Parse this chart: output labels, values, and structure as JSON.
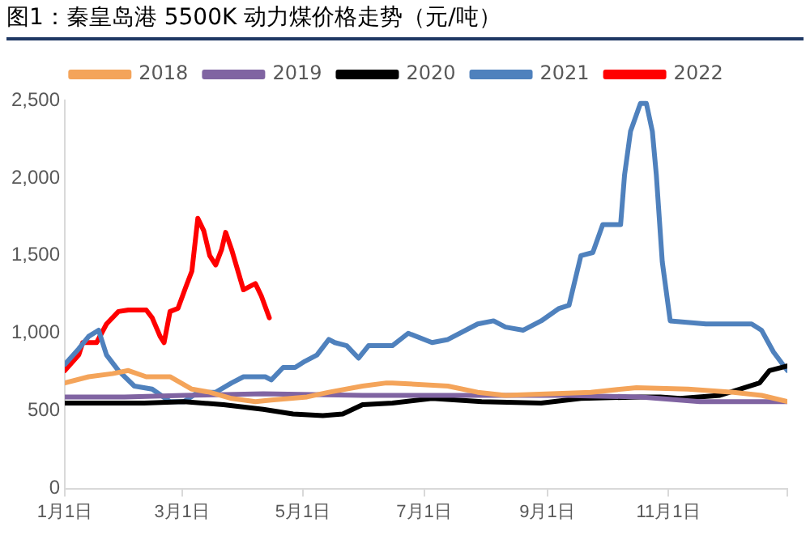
{
  "chart_data": {
    "type": "line",
    "title": "图1：秦皇岛港 5500K 动力煤价格走势（元/吨）",
    "xlim": [
      "--01-01",
      "--12-31"
    ],
    "xticks": [
      {
        "value": "--01-01",
        "label": "1月1日"
      },
      {
        "value": "--03-01",
        "label": "3月1日"
      },
      {
        "value": "--05-01",
        "label": "5月1日"
      },
      {
        "value": "--07-01",
        "label": "7月1日"
      },
      {
        "value": "--09-01",
        "label": "9月1日"
      },
      {
        "value": "--11-01",
        "label": "11月1日"
      },
      {
        "value": "--12-31",
        "label": null
      }
    ],
    "ylim": [
      0,
      2500
    ],
    "yticks": [
      0,
      {
        "value": 500,
        "label": "500"
      },
      {
        "value": 1000,
        "label": "1,000"
      },
      {
        "value": 1500,
        "label": "1,500"
      },
      {
        "value": 2000,
        "label": "2,000"
      },
      {
        "value": 2500,
        "label": "2,500"
      }
    ],
    "grid": false,
    "legend": "top",
    "marker": "none",
    "line_style": "solid",
    "series": [
      {
        "name": "2018",
        "color": "#f4a45a",
        "x": [
          "--01-01",
          "--01-13",
          "--01-25",
          "--02-02",
          "--02-11",
          "--02-23",
          "--03-06",
          "--03-15",
          "--03-26",
          "--04-07",
          "--04-15",
          "--05-03",
          "--05-14",
          "--05-31",
          "--06-12",
          "--06-15",
          "--07-13",
          "--07-28",
          "--08-11",
          "--09-03",
          "--09-23",
          "--10-16",
          "--11-11",
          "--12-04",
          "--12-18",
          "--12-31"
        ],
        "values": [
          680,
          720,
          740,
          760,
          720,
          720,
          640,
          620,
          580,
          560,
          570,
          590,
          620,
          660,
          680,
          680,
          660,
          620,
          600,
          610,
          620,
          650,
          640,
          620,
          600,
          560
        ]
      },
      {
        "name": "2019",
        "color": "#8064a2",
        "x": [
          "--01-01",
          "--01-31",
          "--03-02",
          "--04-11",
          "--05-31",
          "--07-20",
          "--09-08",
          "--10-18",
          "--11-17",
          "--12-31"
        ],
        "values": [
          590,
          590,
          600,
          610,
          600,
          600,
          600,
          590,
          560,
          560
        ]
      },
      {
        "name": "2020",
        "color": "#000000",
        "x": [
          "--01-01",
          "--02-10",
          "--03-02",
          "--03-22",
          "--04-11",
          "--04-26",
          "--05-11",
          "--05-21",
          "--05-31",
          "--06-15",
          "--07-05",
          "--07-30",
          "--08-29",
          "--09-18",
          "--10-18",
          "--10-28",
          "--11-07",
          "--11-27",
          "--12-07",
          "--12-17",
          "--12-22",
          "--12-31"
        ],
        "values": [
          550,
          550,
          560,
          540,
          510,
          480,
          470,
          480,
          540,
          550,
          580,
          560,
          550,
          580,
          590,
          590,
          580,
          600,
          640,
          680,
          760,
          790
        ]
      },
      {
        "name": "2021",
        "color": "#4f81bd",
        "x": [
          "--01-01",
          "--01-08",
          "--01-13",
          "--01-18",
          "--01-22",
          "--01-28",
          "--02-05",
          "--02-14",
          "--02-23",
          "--03-02",
          "--03-09",
          "--03-18",
          "--03-26",
          "--04-01",
          "--04-12",
          "--04-15",
          "--04-21",
          "--04-27",
          "--05-02",
          "--05-08",
          "--05-14",
          "--05-17",
          "--05-23",
          "--05-29",
          "--06-03",
          "--06-15",
          "--06-23",
          "--07-05",
          "--07-13",
          "--07-28",
          "--08-05",
          "--08-11",
          "--08-20",
          "--08-29",
          "--09-07",
          "--09-12",
          "--09-18",
          "--09-24",
          "--09-29",
          "--10-08",
          "--10-10",
          "--10-13",
          "--10-18",
          "--10-21",
          "--10-24",
          "--10-26",
          "--10-29",
          "--11-02",
          "--11-20",
          "--12-13",
          "--12-18",
          "--12-24",
          "--12-31"
        ],
        "values": [
          800,
          900,
          980,
          1020,
          860,
          760,
          660,
          640,
          560,
          560,
          620,
          620,
          680,
          720,
          720,
          700,
          780,
          780,
          820,
          860,
          960,
          940,
          920,
          840,
          920,
          920,
          1000,
          940,
          960,
          1060,
          1080,
          1040,
          1020,
          1080,
          1160,
          1180,
          1500,
          1520,
          1700,
          1700,
          2020,
          2300,
          2480,
          2480,
          2300,
          2020,
          1460,
          1080,
          1060,
          1060,
          1020,
          880,
          760
        ]
      },
      {
        "name": "2022",
        "color": "#ff0000",
        "x": [
          "--01-01",
          "--01-08",
          "--01-10",
          "--01-17",
          "--01-22",
          "--01-28",
          "--02-02",
          "--02-11",
          "--02-14",
          "--02-18",
          "--02-20",
          "--02-23",
          "--02-27",
          "--03-03",
          "--03-06",
          "--03-09",
          "--03-12",
          "--03-15",
          "--03-18",
          "--03-21",
          "--03-23",
          "--03-26",
          "--04-01",
          "--04-04",
          "--04-07",
          "--04-10",
          "--04-14"
        ],
        "values": [
          760,
          860,
          940,
          940,
          1060,
          1140,
          1150,
          1150,
          1100,
          980,
          940,
          1140,
          1160,
          1300,
          1400,
          1740,
          1660,
          1500,
          1440,
          1540,
          1650,
          1540,
          1280,
          1300,
          1320,
          1240,
          1100
        ]
      }
    ]
  }
}
